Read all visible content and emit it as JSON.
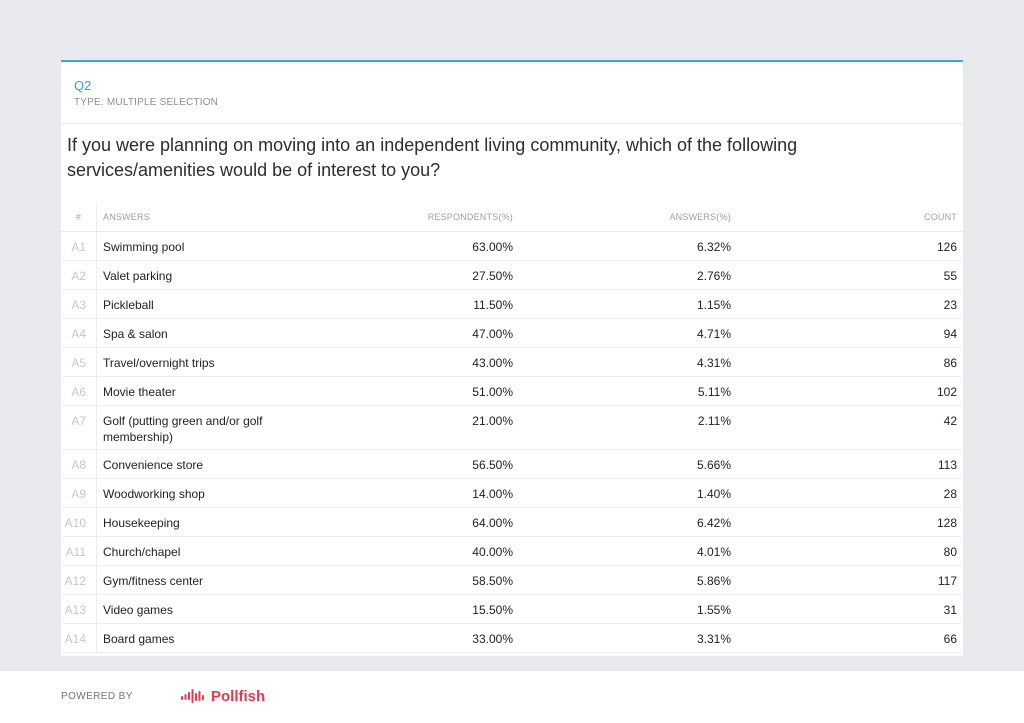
{
  "question": {
    "id": "Q2",
    "type": "TYPE: MULTIPLE SELECTION",
    "text": "If you were planning on moving into an independent living community, which of the following services/amenities would be of interest to you?"
  },
  "table": {
    "headers": {
      "num": "#",
      "answers": "ANSWERS",
      "respondents": "RESPONDENTS(%)",
      "answers_pct": "ANSWERS(%)",
      "count": "COUNT"
    },
    "rows": [
      {
        "id": "A1",
        "answer": "Swimming pool",
        "respondents": "63.00%",
        "answers_pct": "6.32%",
        "count": "126"
      },
      {
        "id": "A2",
        "answer": "Valet parking",
        "respondents": "27.50%",
        "answers_pct": "2.76%",
        "count": "55"
      },
      {
        "id": "A3",
        "answer": "Pickleball",
        "respondents": "11.50%",
        "answers_pct": "1.15%",
        "count": "23"
      },
      {
        "id": "A4",
        "answer": "Spa & salon",
        "respondents": "47.00%",
        "answers_pct": "4.71%",
        "count": "94"
      },
      {
        "id": "A5",
        "answer": "Travel/overnight trips",
        "respondents": "43.00%",
        "answers_pct": "4.31%",
        "count": "86"
      },
      {
        "id": "A6",
        "answer": "Movie theater",
        "respondents": "51.00%",
        "answers_pct": "5.11%",
        "count": "102"
      },
      {
        "id": "A7",
        "answer": "Golf (putting green and/or golf membership)",
        "respondents": "21.00%",
        "answers_pct": "2.11%",
        "count": "42"
      },
      {
        "id": "A8",
        "answer": "Convenience store",
        "respondents": "56.50%",
        "answers_pct": "5.66%",
        "count": "113"
      },
      {
        "id": "A9",
        "answer": "Woodworking shop",
        "respondents": "14.00%",
        "answers_pct": "1.40%",
        "count": "28"
      },
      {
        "id": "A10",
        "answer": "Housekeeping",
        "respondents": "64.00%",
        "answers_pct": "6.42%",
        "count": "128"
      },
      {
        "id": "A11",
        "answer": "Church/chapel",
        "respondents": "40.00%",
        "answers_pct": "4.01%",
        "count": "80"
      },
      {
        "id": "A12",
        "answer": "Gym/fitness center",
        "respondents": "58.50%",
        "answers_pct": "5.86%",
        "count": "117"
      },
      {
        "id": "A13",
        "answer": "Video games",
        "respondents": "15.50%",
        "answers_pct": "1.55%",
        "count": "31"
      },
      {
        "id": "A14",
        "answer": "Board games",
        "respondents": "33.00%",
        "answers_pct": "3.31%",
        "count": "66"
      }
    ]
  },
  "footer": {
    "powered_by": "POWERED BY",
    "brand": "Pollfish",
    "logo_icon": "pollfish-waveform-icon",
    "brand_color": "#e8384a"
  },
  "colors": {
    "accent": "#3aa5e6",
    "background": "#e8eaee"
  }
}
